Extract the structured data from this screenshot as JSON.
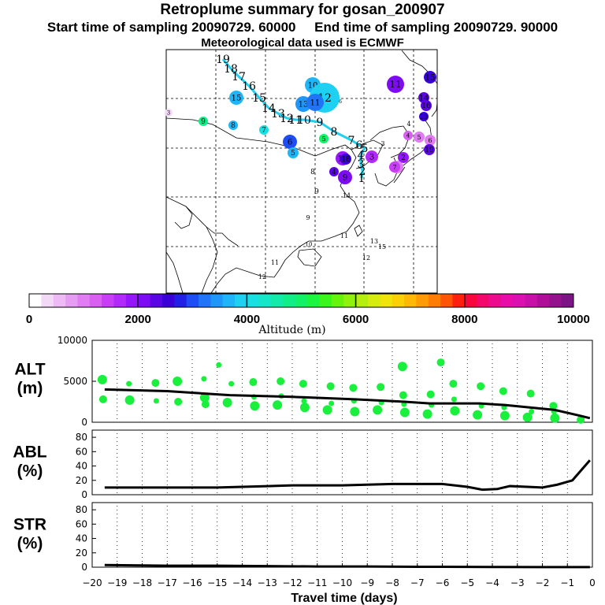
{
  "header": {
    "title": "Retroplume summary for gosan_200907",
    "start_label": "Start time of sampling 20090729. 60000",
    "end_label": "End time of sampling 20090729. 90000",
    "met_label": "Meteorological data used is ECMWF"
  },
  "colorbar": {
    "label": "Altitude (m)",
    "tick_labels": [
      "0",
      "2000",
      "4000",
      "6000",
      "8000",
      "10000"
    ],
    "range": [
      0,
      10000
    ],
    "colors": [
      "#ffffff",
      "#f4d8f8",
      "#eebaf6",
      "#e79cf4",
      "#e07df2",
      "#d95ff0",
      "#c83ef6",
      "#b229fb",
      "#9616fb",
      "#7d0cf5",
      "#5a05e6",
      "#3a00d8",
      "#2020e6",
      "#1e4cf5",
      "#1f74f8",
      "#1f96f9",
      "#1eb6f8",
      "#1ed0f2",
      "#18e0e0",
      "#14e6c8",
      "#12ebaa",
      "#10ee88",
      "#12f266",
      "#1af53f",
      "#3af61a",
      "#66f50a",
      "#8ff20c",
      "#b4ef0e",
      "#d6ec0d",
      "#f0e40a",
      "#fbd006",
      "#ffb805",
      "#ff9c05",
      "#ff7d05",
      "#ff5505",
      "#ff2010",
      "#f8063c",
      "#f3076a",
      "#ee0a8e",
      "#e80ca8",
      "#dc10b0",
      "#c810a8",
      "#b00e98",
      "#96118c",
      "#7c1486"
    ]
  },
  "map": {
    "centroid_color": "#1ed0f2",
    "labels": [
      {
        "text": "19",
        "color": "#000000",
        "alt": null
      },
      {
        "text": "18",
        "color": "#000000",
        "alt": null
      },
      {
        "text": "17",
        "color": "#000000",
        "alt": null
      },
      {
        "text": "16",
        "color": "#000000",
        "alt": null
      },
      {
        "text": "15",
        "color": "#000000",
        "alt": null
      },
      {
        "text": "14",
        "color": "#000000",
        "alt": null
      },
      {
        "text": "13",
        "color": "#000000",
        "alt": null
      },
      {
        "text": "12",
        "color": "#000000",
        "alt": null
      },
      {
        "text": "11",
        "color": "#000000",
        "alt": null
      },
      {
        "text": "10",
        "color": "#000000",
        "alt": null
      },
      {
        "text": "9",
        "color": "#000000",
        "alt": null
      },
      {
        "text": "8",
        "color": "#000000",
        "alt": null
      },
      {
        "text": "7",
        "color": "#000000",
        "alt": null
      },
      {
        "text": "6",
        "color": "#000000",
        "alt": null
      },
      {
        "text": "5",
        "color": "#000000",
        "alt": null
      },
      {
        "text": "4",
        "color": "#000000",
        "alt": null
      },
      {
        "text": "3",
        "color": "#000000",
        "alt": null
      },
      {
        "text": "2",
        "color": "#000000",
        "alt": null
      },
      {
        "text": "1",
        "color": "#000000",
        "alt": null
      },
      {
        "text": "15",
        "alt": 3600
      },
      {
        "text": "10",
        "alt": 3700
      },
      {
        "text": "12",
        "alt": 3800
      },
      {
        "text": "13",
        "alt": 3500
      },
      {
        "text": "11",
        "alt": 3200
      },
      {
        "text": "9",
        "alt": 4800
      },
      {
        "text": "8",
        "alt": 3700
      },
      {
        "text": "7",
        "alt": 4000
      },
      {
        "text": "6",
        "alt": 3000
      },
      {
        "text": "5",
        "alt": 3600
      },
      {
        "text": "5",
        "alt": 5000
      },
      {
        "text": "4",
        "alt": 6500
      },
      {
        "text": "3",
        "alt": 2500
      },
      {
        "text": "3",
        "alt": 400
      },
      {
        "text": "6",
        "alt": 8000
      },
      {
        "text": "11",
        "alt": 2200
      },
      {
        "text": "15",
        "alt": 2500
      },
      {
        "text": "14",
        "alt": 2300
      },
      {
        "text": "16",
        "alt": 2400
      },
      {
        "text": "13",
        "alt": 2500
      },
      {
        "text": "4",
        "alt": 1200
      },
      {
        "text": "5",
        "alt": 900
      },
      {
        "text": "6",
        "alt": 1100
      },
      {
        "text": "19",
        "alt": 2400
      },
      {
        "text": "2",
        "alt": 1800
      },
      {
        "text": "1",
        "alt": 1000
      },
      {
        "text": "7",
        "alt": 1500
      },
      {
        "text": "10",
        "alt": 1800
      },
      {
        "text": "18",
        "alt": 2600
      },
      {
        "text": "3",
        "alt": 1600
      },
      {
        "text": "4",
        "alt": 2400
      },
      {
        "text": "9",
        "alt": 2200
      },
      {
        "text": "8",
        "alt": 3600
      },
      {
        "text": "9",
        "alt": 2000
      },
      {
        "text": "14",
        "alt": 2100
      },
      {
        "text": "9",
        "alt": 1800
      },
      {
        "text": "11",
        "alt": 1400
      },
      {
        "text": "10",
        "alt": 1600
      },
      {
        "text": "13",
        "alt": 2100
      },
      {
        "text": "15",
        "alt": 2200
      },
      {
        "text": "12",
        "alt": 2000
      },
      {
        "text": "11",
        "alt": 1800
      },
      {
        "text": "12",
        "alt": 1700
      }
    ]
  },
  "chart_data": [
    {
      "type": "scatter",
      "panel": "ALT",
      "ylabel_line1": "ALT",
      "ylabel_line2": "(m)",
      "ylim": [
        0,
        10000
      ],
      "ytick_labels": [
        "0",
        "5000",
        "10000"
      ],
      "xlim": [
        -20,
        0
      ],
      "marker_color": "#18f03c",
      "series": [
        {
          "name": "plume clusters",
          "points": [
            [
              -19.5,
              5200
            ],
            [
              -19.5,
              2800
            ],
            [
              -18.5,
              4700
            ],
            [
              -18.5,
              2700
            ],
            [
              -17.5,
              4800
            ],
            [
              -17.5,
              2600
            ],
            [
              -16.5,
              5000
            ],
            [
              -16.5,
              2500
            ],
            [
              -15.5,
              5300
            ],
            [
              -15.5,
              3000
            ],
            [
              -15.5,
              2200
            ],
            [
              -14.5,
              4700
            ],
            [
              -14.5,
              2400
            ],
            [
              -13.5,
              4900
            ],
            [
              -13.5,
              3100
            ],
            [
              -13.5,
              2000
            ],
            [
              -12.5,
              5000
            ],
            [
              -12.5,
              3200
            ],
            [
              -12.5,
              2100
            ],
            [
              -11.5,
              4700
            ],
            [
              -11.5,
              2600
            ],
            [
              -11.5,
              1800
            ],
            [
              -10.5,
              4400
            ],
            [
              -10.5,
              2300
            ],
            [
              -10.5,
              1500
            ],
            [
              -9.5,
              4200
            ],
            [
              -9.5,
              2600
            ],
            [
              -9.5,
              1300
            ],
            [
              -8.5,
              4300
            ],
            [
              -8.5,
              2400
            ],
            [
              -8.5,
              1500
            ],
            [
              -7.5,
              3300
            ],
            [
              -7.5,
              2200
            ],
            [
              -7.5,
              1200
            ],
            [
              -6.5,
              3400
            ],
            [
              -6.5,
              2100
            ],
            [
              -6.5,
              1000
            ],
            [
              -5.5,
              4700
            ],
            [
              -5.5,
              2800
            ],
            [
              -5.5,
              1400
            ],
            [
              -4.5,
              4400
            ],
            [
              -4.5,
              2000
            ],
            [
              -4.5,
              900
            ],
            [
              -3.5,
              3800
            ],
            [
              -3.5,
              1800
            ],
            [
              -3.5,
              800
            ],
            [
              -2.5,
              3500
            ],
            [
              -2.5,
              1300
            ],
            [
              -2.5,
              600
            ],
            [
              -1.5,
              2000
            ],
            [
              -1.5,
              1300
            ],
            [
              -1.5,
              500
            ],
            [
              -0.5,
              300
            ],
            [
              -15.0,
              7000
            ],
            [
              -7.5,
              6800
            ],
            [
              -6.0,
              7300
            ]
          ]
        },
        {
          "name": "mean altitude",
          "x": [
            -19.5,
            -17.0,
            -14.5,
            -12.0,
            -9.5,
            -7.5,
            -6.5,
            -4.5,
            -3.5,
            -2.5,
            -1.5,
            -0.5,
            -0.1
          ],
          "values": [
            4000,
            3800,
            3300,
            3100,
            2800,
            2500,
            2300,
            2300,
            2100,
            1800,
            1500,
            800,
            500
          ]
        }
      ]
    },
    {
      "type": "line",
      "panel": "ABL",
      "ylabel_line1": "ABL",
      "ylabel_line2": "(%)",
      "ylim": [
        0,
        90
      ],
      "ytick_labels": [
        "0",
        "20",
        "40",
        "60",
        "80"
      ],
      "xlim": [
        -20,
        0
      ],
      "x": [
        -19.5,
        -17,
        -15,
        -14,
        -13,
        -12,
        -11,
        -10,
        -9,
        -8,
        -7,
        -6,
        -5,
        -4.4,
        -3.8,
        -3.3,
        -2.6,
        -2,
        -1.4,
        -0.8,
        -0.1
      ],
      "values": [
        10,
        10,
        10,
        11,
        12,
        13,
        13,
        13,
        14,
        15,
        15,
        15,
        11,
        7,
        8,
        12,
        11,
        10,
        14,
        20,
        48
      ]
    },
    {
      "type": "line",
      "panel": "STR",
      "ylabel_line1": "STR",
      "ylabel_line2": "(%)",
      "ylim": [
        0,
        90
      ],
      "ytick_labels": [
        "0",
        "20",
        "40",
        "60",
        "80"
      ],
      "xlim": [
        -20,
        0
      ],
      "xlabel": "Travel time (days)",
      "xtick_labels": [
        "−20",
        "−19",
        "−18",
        "−17",
        "−16",
        "−15",
        "−14",
        "−13",
        "−12",
        "−11",
        "−10",
        "−9",
        "−8",
        "−7",
        "−6",
        "−5",
        "−4",
        "−3",
        "−2",
        "−1",
        "0"
      ],
      "x": [
        -19.5,
        -17,
        -15,
        -13,
        -11,
        -9,
        -7,
        -6,
        -4,
        -2,
        -0.1
      ],
      "values": [
        3,
        2,
        2,
        1.5,
        1,
        1,
        0.5,
        0.5,
        0.3,
        0.2,
        0.1
      ]
    }
  ]
}
